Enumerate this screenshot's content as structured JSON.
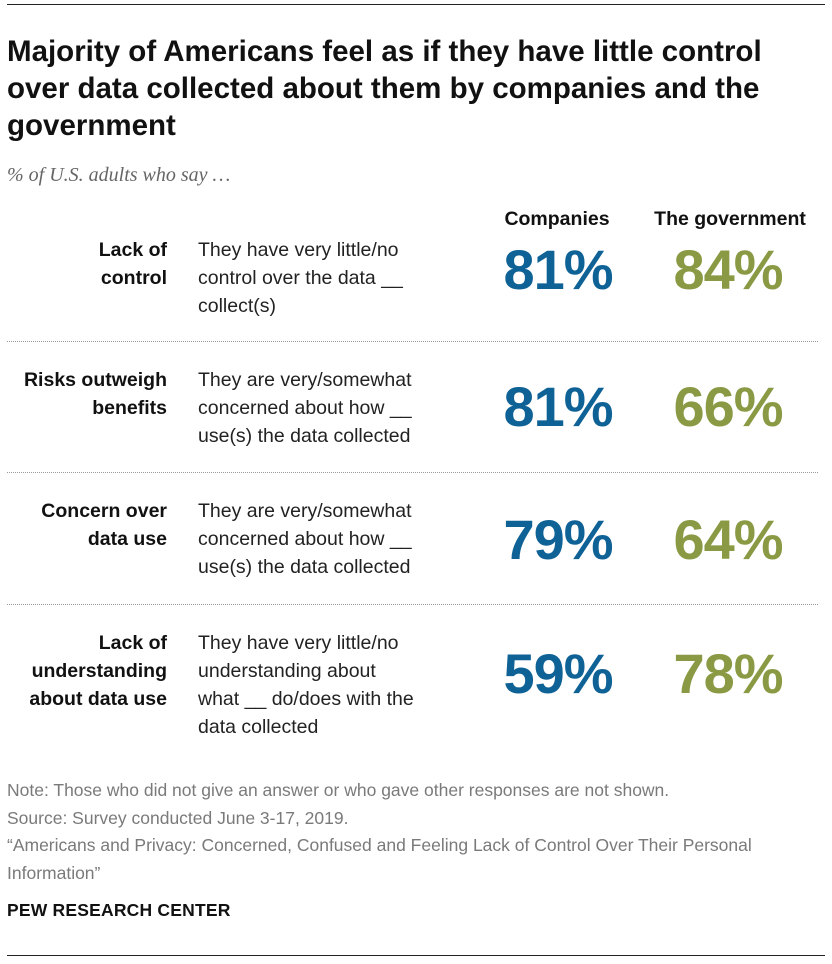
{
  "title": "Majority of Americans feel as if they have little control over data collected about them by companies and the government",
  "subtitle": "% of U.S. adults who say …",
  "columns": {
    "companies": "Companies",
    "government": "The government"
  },
  "rows": [
    {
      "category": "Lack of\ncontrol",
      "description": "They have very little/no\ncontrol over the data __\ncollect(s)",
      "companies": "81%",
      "government": "84%"
    },
    {
      "category": "Risks outweigh\nbenefits",
      "description": "They are very/somewhat\nconcerned about how __\nuse(s) the data collected",
      "companies": "81%",
      "government": "66%"
    },
    {
      "category": "Concern over\ndata use",
      "description": "They are very/somewhat\nconcerned about how __\nuse(s) the data collected",
      "companies": "79%",
      "government": "64%"
    },
    {
      "category": "Lack of\nunderstanding\nabout data use",
      "description": "They have very little/no\nunderstanding about\nwhat __ do/does with the\ndata collected",
      "companies": "59%",
      "government": "78%"
    }
  ],
  "notes": {
    "note": "Note: Those who did not give an answer or who gave other responses are not shown.",
    "source": "Source: Survey conducted June 3-17, 2019.",
    "report": "“Americans and Privacy: Concerned, Confused and Feeling Lack of Control Over Their Personal Information”"
  },
  "organization": "PEW RESEARCH CENTER",
  "colors": {
    "companies": "#0f6296",
    "government": "#8a9a44"
  },
  "chart_data": {
    "type": "table",
    "title": "Majority of Americans feel as if they have little control over data collected about them by companies and the government",
    "subtitle": "% of U.S. adults who say …",
    "categories": [
      "Lack of control",
      "Risks outweigh benefits",
      "Concern over data use",
      "Lack of understanding about data use"
    ],
    "series": [
      {
        "name": "Companies",
        "values": [
          81,
          81,
          79,
          59
        ]
      },
      {
        "name": "The government",
        "values": [
          84,
          66,
          64,
          78
        ]
      }
    ],
    "unit": "%"
  }
}
